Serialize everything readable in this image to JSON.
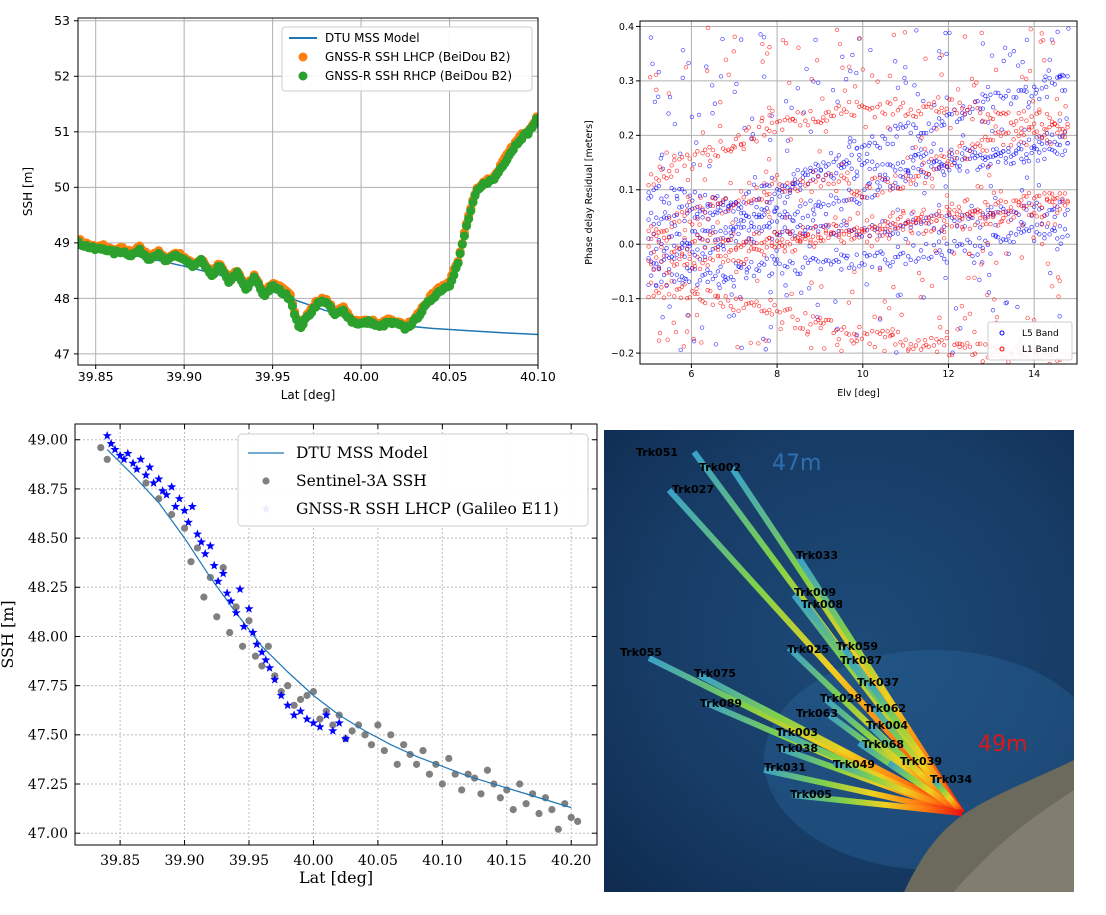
{
  "chart_data": [
    {
      "type": "line",
      "panel": "top-left",
      "xlabel": "Lat [deg]",
      "ylabel": "SSH [m]",
      "xlim": [
        39.84,
        40.1
      ],
      "ylim": [
        46.8,
        53.05
      ],
      "xticks": [
        39.85,
        39.9,
        39.95,
        40.0,
        40.05,
        40.1
      ],
      "xtick_labels": [
        "39.85",
        "39.90",
        "39.95",
        "40.00",
        "40.05",
        "40.10"
      ],
      "yticks": [
        47,
        48,
        49,
        50,
        51,
        52,
        53
      ],
      "ytick_labels": [
        "47",
        "48",
        "49",
        "50",
        "51",
        "52",
        "53"
      ],
      "grid": true,
      "legend": "top-right",
      "series": [
        {
          "name": "DTU MSS Model",
          "kind": "line",
          "color": "#1f77b4",
          "x": [
            39.84,
            39.86,
            39.88,
            39.9,
            39.92,
            39.94,
            39.96,
            39.98,
            40.0,
            40.02,
            40.04,
            40.06,
            40.08,
            40.1
          ],
          "y": [
            49.0,
            48.85,
            48.72,
            48.58,
            48.42,
            48.25,
            48.0,
            47.78,
            47.63,
            47.52,
            47.46,
            47.42,
            47.38,
            47.35
          ]
        },
        {
          "name": "GNSS-R SSH LHCP (BeiDou B2)",
          "kind": "scatter",
          "color": "#ff7f0e",
          "x": [
            39.84,
            39.845,
            39.85,
            39.855,
            39.86,
            39.865,
            39.87,
            39.875,
            39.88,
            39.885,
            39.89,
            39.895,
            39.9,
            39.905,
            39.91,
            39.915,
            39.92,
            39.925,
            39.93,
            39.935,
            39.94,
            39.945,
            39.95,
            39.955,
            39.96,
            39.965,
            39.97,
            39.975,
            39.98,
            39.985,
            39.99,
            39.995,
            40.0,
            40.005,
            40.01,
            40.015,
            40.02,
            40.025,
            40.03,
            40.035,
            40.04,
            40.045,
            40.05,
            40.055,
            40.06,
            40.065,
            40.07,
            40.075,
            40.08,
            40.085,
            40.09,
            40.095,
            40.1
          ],
          "y": [
            49.05,
            48.98,
            48.92,
            48.95,
            48.86,
            48.9,
            48.82,
            48.92,
            48.76,
            48.85,
            48.7,
            48.82,
            48.75,
            48.6,
            48.72,
            48.45,
            48.62,
            48.35,
            48.5,
            48.2,
            48.42,
            48.1,
            48.28,
            48.18,
            48.05,
            47.5,
            47.72,
            47.95,
            48.0,
            47.75,
            47.82,
            47.62,
            47.58,
            47.62,
            47.52,
            47.6,
            47.58,
            47.5,
            47.62,
            47.85,
            48.05,
            48.2,
            48.3,
            48.7,
            49.4,
            49.95,
            50.12,
            50.18,
            50.45,
            50.7,
            50.92,
            51.05,
            51.3
          ]
        },
        {
          "name": "GNSS-R SSH RHCP (BeiDou B2)",
          "kind": "scatter",
          "color": "#2ca02c",
          "x": [
            39.84,
            39.845,
            39.85,
            39.855,
            39.86,
            39.865,
            39.87,
            39.875,
            39.88,
            39.885,
            39.89,
            39.895,
            39.9,
            39.905,
            39.91,
            39.915,
            39.92,
            39.925,
            39.93,
            39.935,
            39.94,
            39.945,
            39.95,
            39.955,
            39.96,
            39.965,
            39.97,
            39.975,
            39.98,
            39.985,
            39.99,
            39.995,
            40.0,
            40.005,
            40.01,
            40.015,
            40.02,
            40.025,
            40.03,
            40.035,
            40.04,
            40.045,
            40.05,
            40.055,
            40.06,
            40.065,
            40.07,
            40.075,
            40.08,
            40.085,
            40.09,
            40.095,
            40.1
          ],
          "y": [
            49.0,
            48.94,
            48.88,
            48.9,
            48.82,
            48.85,
            48.78,
            48.86,
            48.72,
            48.8,
            48.66,
            48.78,
            48.7,
            48.56,
            48.68,
            48.4,
            48.58,
            48.3,
            48.45,
            48.15,
            48.38,
            48.05,
            48.22,
            48.12,
            48.0,
            47.45,
            47.68,
            47.9,
            47.96,
            47.7,
            47.78,
            47.58,
            47.54,
            47.58,
            47.48,
            47.56,
            47.54,
            47.46,
            47.58,
            47.8,
            48.0,
            48.15,
            48.25,
            48.65,
            49.35,
            49.9,
            50.08,
            50.14,
            50.4,
            50.65,
            50.88,
            51.0,
            51.25
          ]
        }
      ]
    },
    {
      "type": "scatter",
      "panel": "top-right",
      "xlabel": "Elv [deg]",
      "ylabel": "Phase delay Residual [meters]",
      "xlim": [
        4.8,
        15.0
      ],
      "ylim": [
        -0.22,
        0.41
      ],
      "xticks": [
        6,
        8,
        10,
        12,
        14
      ],
      "xtick_labels": [
        "6",
        "8",
        "10",
        "12",
        "14"
      ],
      "yticks": [
        -0.2,
        -0.1,
        0.0,
        0.1,
        0.2,
        0.3,
        0.4
      ],
      "ytick_labels": [
        "−0.2",
        "−0.1",
        "0.0",
        "0.1",
        "0.2",
        "0.3",
        "0.4"
      ],
      "grid": true,
      "legend": "bottom-right",
      "series": [
        {
          "name": "L5 Band",
          "color": "#0000ff",
          "tracks": [
            {
              "x": [
                5,
                6,
                7,
                8,
                9,
                10,
                11,
                12,
                13,
                14,
                14.8
              ],
              "y": [
                0.0,
                0.01,
                0.02,
                0.02,
                0.03,
                0.03,
                0.03,
                0.04,
                0.05,
                0.06,
                0.07
              ]
            },
            {
              "x": [
                5,
                6,
                7,
                8,
                9,
                10,
                11,
                12,
                13,
                14,
                14.8
              ],
              "y": [
                -0.03,
                -0.02,
                0.02,
                0.08,
                0.14,
                0.18,
                0.21,
                0.23,
                0.26,
                0.28,
                0.3
              ]
            },
            {
              "x": [
                5,
                6,
                7,
                8,
                9,
                10,
                11,
                12,
                13,
                14,
                14.8
              ],
              "y": [
                0.05,
                0.06,
                0.08,
                0.11,
                0.13,
                0.14,
                0.15,
                0.16,
                0.16,
                0.17,
                0.18
              ]
            },
            {
              "x": [
                5,
                6,
                7,
                8,
                9,
                10,
                11,
                12,
                13,
                14,
                14.8
              ],
              "y": [
                -0.06,
                -0.06,
                -0.05,
                -0.04,
                -0.04,
                -0.03,
                -0.02,
                -0.01,
                0.0,
                0.02,
                0.03
              ]
            },
            {
              "x": [
                5,
                6,
                7,
                8,
                9,
                10,
                11,
                12,
                13,
                14,
                14.8
              ],
              "y": [
                0.1,
                0.08,
                0.06,
                0.05,
                0.07,
                0.09,
                0.12,
                0.14,
                0.16,
                0.18,
                0.2
              ]
            }
          ]
        },
        {
          "name": "L1 Band",
          "color": "#ff0000",
          "tracks": [
            {
              "x": [
                5,
                6,
                7,
                8,
                9,
                10,
                11,
                12,
                13,
                14,
                14.8
              ],
              "y": [
                0.0,
                0.0,
                0.01,
                0.01,
                0.02,
                0.02,
                0.03,
                0.04,
                0.05,
                0.06,
                0.08
              ]
            },
            {
              "x": [
                5,
                6,
                7,
                8,
                9,
                10,
                11,
                12,
                13,
                14,
                14.8
              ],
              "y": [
                0.02,
                0.05,
                0.08,
                0.11,
                0.12,
                0.1,
                0.12,
                0.16,
                0.19,
                0.2,
                0.21
              ]
            },
            {
              "x": [
                5,
                6,
                7,
                8,
                9,
                10,
                11,
                12,
                13,
                14,
                14.8
              ],
              "y": [
                0.12,
                0.15,
                0.19,
                0.22,
                0.24,
                0.25,
                0.25,
                0.25,
                0.24,
                0.23,
                0.22
              ]
            },
            {
              "x": [
                5,
                6,
                7,
                8,
                9,
                10,
                11,
                12,
                13,
                14,
                14.8
              ],
              "y": [
                -0.08,
                -0.09,
                -0.11,
                -0.13,
                -0.15,
                -0.17,
                -0.18,
                -0.19,
                -0.2,
                -0.21,
                -0.22
              ]
            },
            {
              "x": [
                5,
                6,
                7,
                8,
                9,
                10,
                11,
                12,
                13,
                14,
                14.8
              ],
              "y": [
                -0.04,
                -0.03,
                -0.02,
                0.0,
                0.01,
                0.03,
                0.05,
                0.06,
                0.07,
                0.08,
                0.09
              ]
            }
          ]
        }
      ]
    },
    {
      "type": "scatter",
      "panel": "bottom-left",
      "xlabel": "Lat [deg]",
      "ylabel": "SSH [m]",
      "xlim": [
        39.815,
        40.22
      ],
      "ylim": [
        46.94,
        49.08
      ],
      "xticks": [
        39.85,
        39.9,
        39.95,
        40.0,
        40.05,
        40.1,
        40.15,
        40.2
      ],
      "xtick_labels": [
        "39.85",
        "39.90",
        "39.95",
        "40.00",
        "40.05",
        "40.10",
        "40.15",
        "40.20"
      ],
      "yticks": [
        47.0,
        47.25,
        47.5,
        47.75,
        48.0,
        48.25,
        48.5,
        48.75,
        49.0
      ],
      "ytick_labels": [
        "47.00",
        "47.25",
        "47.50",
        "47.75",
        "48.00",
        "48.25",
        "48.50",
        "48.75",
        "49.00"
      ],
      "grid": true,
      "legend": "top-right",
      "series": [
        {
          "name": "DTU MSS Model",
          "kind": "line",
          "color": "#1f77b4",
          "x": [
            39.84,
            39.86,
            39.88,
            39.9,
            39.92,
            39.94,
            39.96,
            39.98,
            40.0,
            40.02,
            40.04,
            40.06,
            40.08,
            40.1,
            40.12,
            40.14,
            40.16,
            40.18,
            40.2
          ],
          "y": [
            48.95,
            48.82,
            48.68,
            48.5,
            48.3,
            48.12,
            47.95,
            47.82,
            47.7,
            47.6,
            47.52,
            47.45,
            47.39,
            47.34,
            47.29,
            47.25,
            47.21,
            47.17,
            47.13
          ]
        },
        {
          "name": "Sentinel-3A SSH",
          "kind": "scatter",
          "color": "#808080",
          "x": [
            39.835,
            39.84,
            39.87,
            39.88,
            39.89,
            39.9,
            39.905,
            39.91,
            39.915,
            39.92,
            39.925,
            39.93,
            39.935,
            39.94,
            39.945,
            39.95,
            39.955,
            39.96,
            39.965,
            39.97,
            39.975,
            39.98,
            39.985,
            39.99,
            39.995,
            40.0,
            40.005,
            40.01,
            40.015,
            40.02,
            40.025,
            40.03,
            40.035,
            40.04,
            40.045,
            40.05,
            40.055,
            40.06,
            40.065,
            40.07,
            40.075,
            40.08,
            40.085,
            40.09,
            40.095,
            40.1,
            40.105,
            40.11,
            40.115,
            40.12,
            40.125,
            40.13,
            40.135,
            40.14,
            40.145,
            40.15,
            40.155,
            40.16,
            40.165,
            40.17,
            40.175,
            40.18,
            40.185,
            40.19,
            40.195,
            40.2,
            40.205
          ],
          "y": [
            48.96,
            48.9,
            48.78,
            48.7,
            48.62,
            48.55,
            48.38,
            48.45,
            48.2,
            48.3,
            48.1,
            48.35,
            48.02,
            48.15,
            47.95,
            48.08,
            47.9,
            47.85,
            47.95,
            47.8,
            47.72,
            47.75,
            47.65,
            47.68,
            47.7,
            47.72,
            47.58,
            47.62,
            47.55,
            47.6,
            47.48,
            47.52,
            47.55,
            47.5,
            47.45,
            47.55,
            47.42,
            47.5,
            47.35,
            47.45,
            47.4,
            47.35,
            47.42,
            47.3,
            47.35,
            47.25,
            47.38,
            47.3,
            47.22,
            47.3,
            47.28,
            47.2,
            47.32,
            47.25,
            47.18,
            47.22,
            47.12,
            47.25,
            47.15,
            47.2,
            47.1,
            47.18,
            47.12,
            47.02,
            47.15,
            47.08,
            47.06
          ]
        },
        {
          "name": "GNSS-R SSH LHCP (Galileo E11)",
          "kind": "scatter",
          "color": "#0000ff",
          "x": [
            39.84,
            39.843,
            39.846,
            39.85,
            39.853,
            39.856,
            39.86,
            39.863,
            39.866,
            39.87,
            39.873,
            39.876,
            39.88,
            39.883,
            39.886,
            39.89,
            39.893,
            39.896,
            39.9,
            39.903,
            39.906,
            39.91,
            39.913,
            39.916,
            39.92,
            39.923,
            39.926,
            39.93,
            39.933,
            39.936,
            39.94,
            39.943,
            39.946,
            39.95,
            39.953,
            39.956,
            39.96,
            39.963,
            39.966,
            39.97,
            39.975,
            39.98,
            39.985,
            39.99,
            39.995,
            40.0,
            40.005,
            40.01,
            40.015,
            40.02,
            40.025
          ],
          "y": [
            49.02,
            48.98,
            48.95,
            48.92,
            48.9,
            48.93,
            48.88,
            48.85,
            48.9,
            48.82,
            48.86,
            48.78,
            48.8,
            48.74,
            48.72,
            48.76,
            48.66,
            48.7,
            48.64,
            48.58,
            48.66,
            48.52,
            48.48,
            48.42,
            48.46,
            48.36,
            48.28,
            48.32,
            48.22,
            48.18,
            48.12,
            48.24,
            48.05,
            48.14,
            48.02,
            47.96,
            47.92,
            47.88,
            47.84,
            47.78,
            47.7,
            47.65,
            47.6,
            47.62,
            47.58,
            47.56,
            47.54,
            47.6,
            47.52,
            47.56,
            47.48
          ]
        }
      ]
    }
  ],
  "map": {
    "depth_labels": [
      "47m",
      "49m"
    ],
    "tracks": [
      "Trk051",
      "Trk002",
      "Trk027",
      "Trk033",
      "Trk009",
      "Trk008",
      "Trk055",
      "Trk025",
      "Trk059",
      "Trk087",
      "Trk075",
      "Trk037",
      "Trk028",
      "Trk089",
      "Trk063",
      "Trk062",
      "Trk004",
      "Trk003",
      "Trk068",
      "Trk038",
      "Trk049",
      "Trk039",
      "Trk031",
      "Trk034",
      "Trk005"
    ]
  }
}
